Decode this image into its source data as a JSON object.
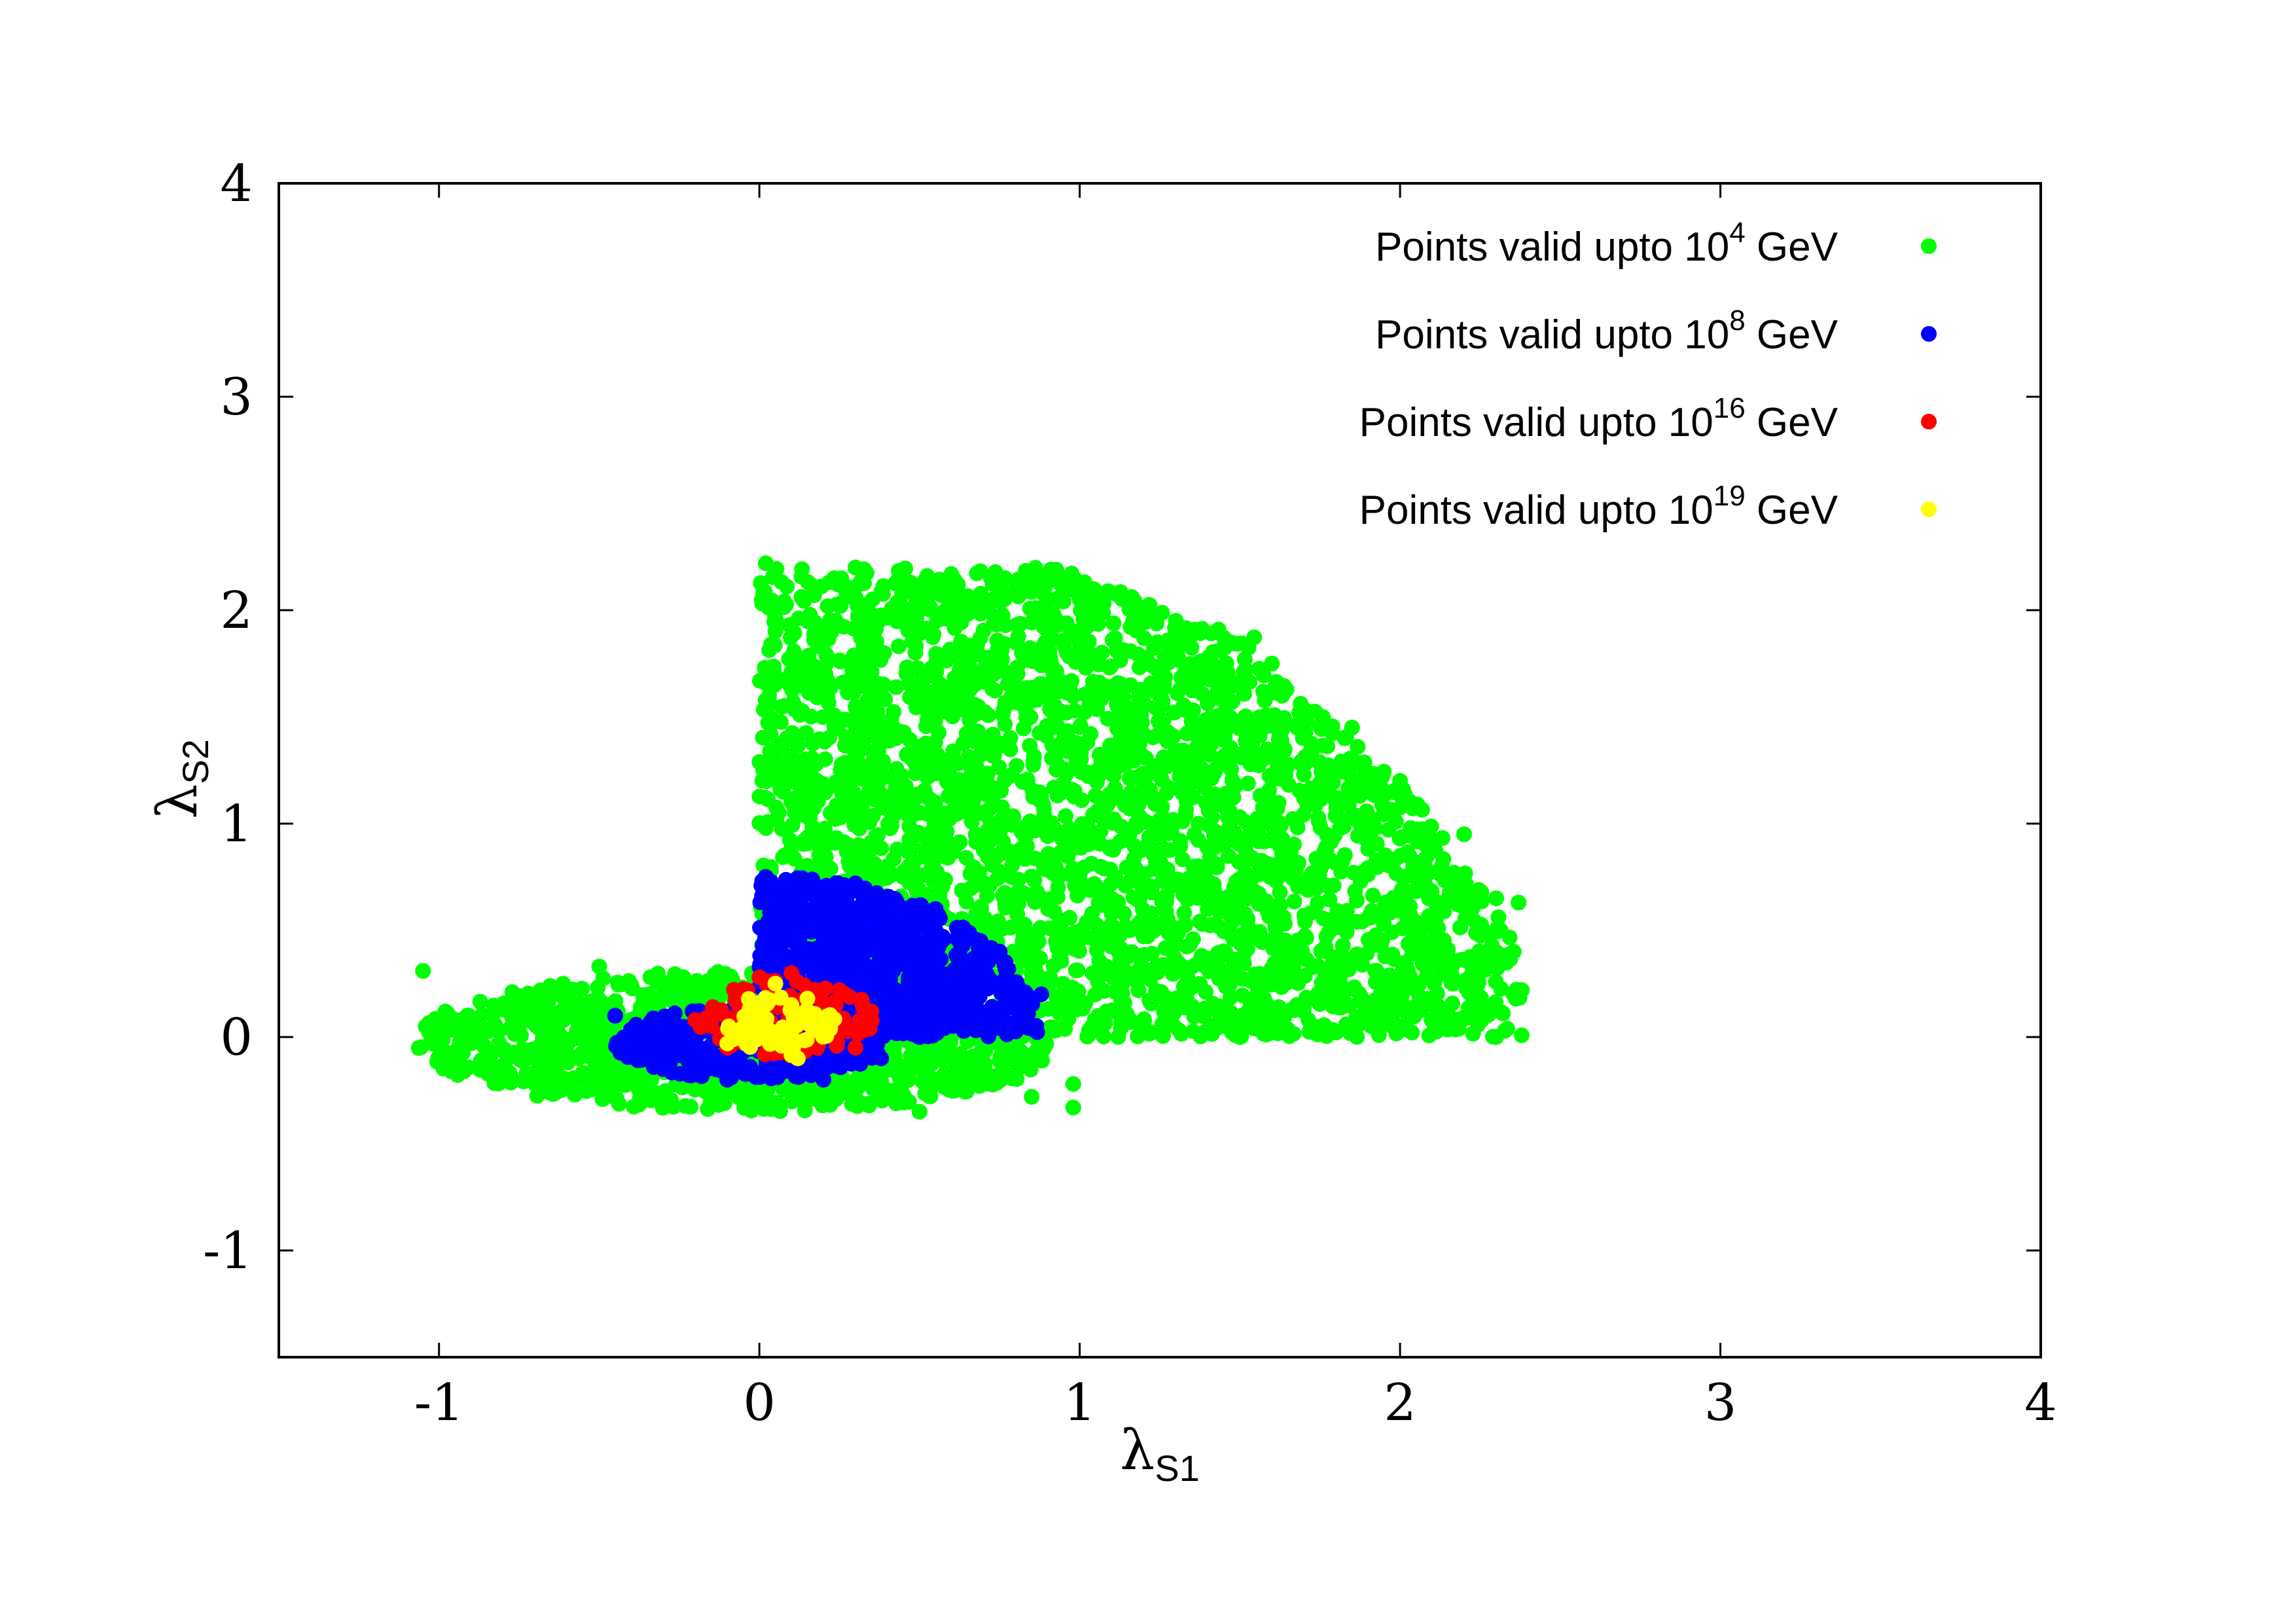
{
  "chart_data": {
    "type": "scatter",
    "title": "",
    "xlabel": {
      "symbol": "λ",
      "subscript": "S1"
    },
    "ylabel": {
      "symbol": "λ",
      "subscript": "S2"
    },
    "xlim": [
      -1.5,
      4
    ],
    "ylim": [
      -1.5,
      4
    ],
    "xticks": [
      -1,
      0,
      1,
      2,
      3,
      4
    ],
    "yticks": [
      -1,
      0,
      1,
      2,
      3,
      4
    ],
    "xtick_labels": [
      "-1",
      "0",
      "1",
      "2",
      "3",
      "4"
    ],
    "ytick_labels": [
      "-1",
      "0",
      "1",
      "2",
      "3",
      "4"
    ],
    "grid": false,
    "legend_position": "top-right",
    "series": [
      {
        "name": "Points valid upto 10^4 GeV",
        "label_parts": {
          "prefix": "Points valid upto 10",
          "exponent": "4",
          "suffix": " GeV"
        },
        "color": "#00ff00",
        "region": {
          "positive_lambda_s1": {
            "x_range": [
              0,
              2.38
            ],
            "y_range": [
              0,
              2.22
            ],
            "outer_radius": 2.35
          },
          "negative_lambda_s2": {
            "x_range": [
              -1.07,
              1.0
            ],
            "y_range": [
              -0.36,
              0.33
            ]
          }
        },
        "points": [
          [
            -1.05,
            0.31
          ],
          [
            -0.98,
            0.12
          ],
          [
            -0.95,
            -0.1
          ],
          [
            -0.7,
            -0.22
          ],
          [
            -0.5,
            0.33
          ],
          [
            -0.3,
            -0.3
          ],
          [
            0.0,
            0.3
          ],
          [
            0.5,
            -0.35
          ],
          [
            0.85,
            -0.28
          ],
          [
            0.98,
            -0.33
          ],
          [
            0.98,
            -0.22
          ],
          [
            0.02,
            2.22
          ],
          [
            0.3,
            2.2
          ],
          [
            0.6,
            2.15
          ],
          [
            1.0,
            2.05
          ],
          [
            1.3,
            1.95
          ],
          [
            1.6,
            1.75
          ],
          [
            1.85,
            1.45
          ],
          [
            2.0,
            1.2
          ],
          [
            2.2,
            0.95
          ],
          [
            2.3,
            0.65
          ],
          [
            2.37,
            0.63
          ],
          [
            2.38,
            0.22
          ],
          [
            2.3,
            0.0
          ],
          [
            1.5,
            0.0
          ],
          [
            0.02,
            0.0
          ]
        ]
      },
      {
        "name": "Points valid upto 10^8 GeV",
        "label_parts": {
          "prefix": "Points valid upto 10",
          "exponent": "8",
          "suffix": " GeV"
        },
        "color": "#0000ff",
        "region": {
          "positive_lambda_s1": {
            "x_range": [
              0,
              0.88
            ],
            "y_range": [
              0,
              0.75
            ]
          },
          "negative_lambda_s2": {
            "x_range": [
              -0.45,
              0.4
            ],
            "y_range": [
              -0.2,
              0.15
            ]
          }
        },
        "points": [
          [
            -0.45,
            0.1
          ],
          [
            -0.4,
            -0.05
          ],
          [
            -0.3,
            -0.15
          ],
          [
            -0.1,
            -0.2
          ],
          [
            0.2,
            -0.2
          ],
          [
            0.38,
            -0.1
          ],
          [
            0.02,
            0.75
          ],
          [
            0.3,
            0.72
          ],
          [
            0.55,
            0.6
          ],
          [
            0.75,
            0.4
          ],
          [
            0.88,
            0.2
          ],
          [
            0.8,
            0.05
          ],
          [
            0.5,
            0.0
          ]
        ]
      },
      {
        "name": "Points valid upto 10^16 GeV",
        "label_parts": {
          "prefix": "Points valid upto 10",
          "exponent": "16",
          "suffix": " GeV"
        },
        "color": "#ff0000",
        "region": {
          "x_range": [
            -0.2,
            0.36
          ],
          "y_range": [
            -0.1,
            0.3
          ]
        },
        "points": [
          [
            -0.2,
            0.08
          ],
          [
            -0.1,
            -0.05
          ],
          [
            0.0,
            0.28
          ],
          [
            0.1,
            0.3
          ],
          [
            0.25,
            0.22
          ],
          [
            0.35,
            0.12
          ],
          [
            0.3,
            -0.05
          ],
          [
            0.1,
            -0.08
          ]
        ]
      },
      {
        "name": "Points valid upto 10^19 GeV",
        "label_parts": {
          "prefix": "Points valid upto 10",
          "exponent": "19",
          "suffix": " GeV"
        },
        "color": "#ffff00",
        "region": {
          "x_range": [
            -0.1,
            0.25
          ],
          "y_range": [
            -0.1,
            0.25
          ]
        },
        "points": [
          [
            -0.1,
            -0.03
          ],
          [
            -0.05,
            0.02
          ],
          [
            0.0,
            0.05
          ],
          [
            0.05,
            0.25
          ],
          [
            0.1,
            0.15
          ],
          [
            0.15,
            0.18
          ],
          [
            0.2,
            0.05
          ],
          [
            0.12,
            -0.1
          ],
          [
            0.05,
            0.0
          ]
        ]
      }
    ]
  }
}
